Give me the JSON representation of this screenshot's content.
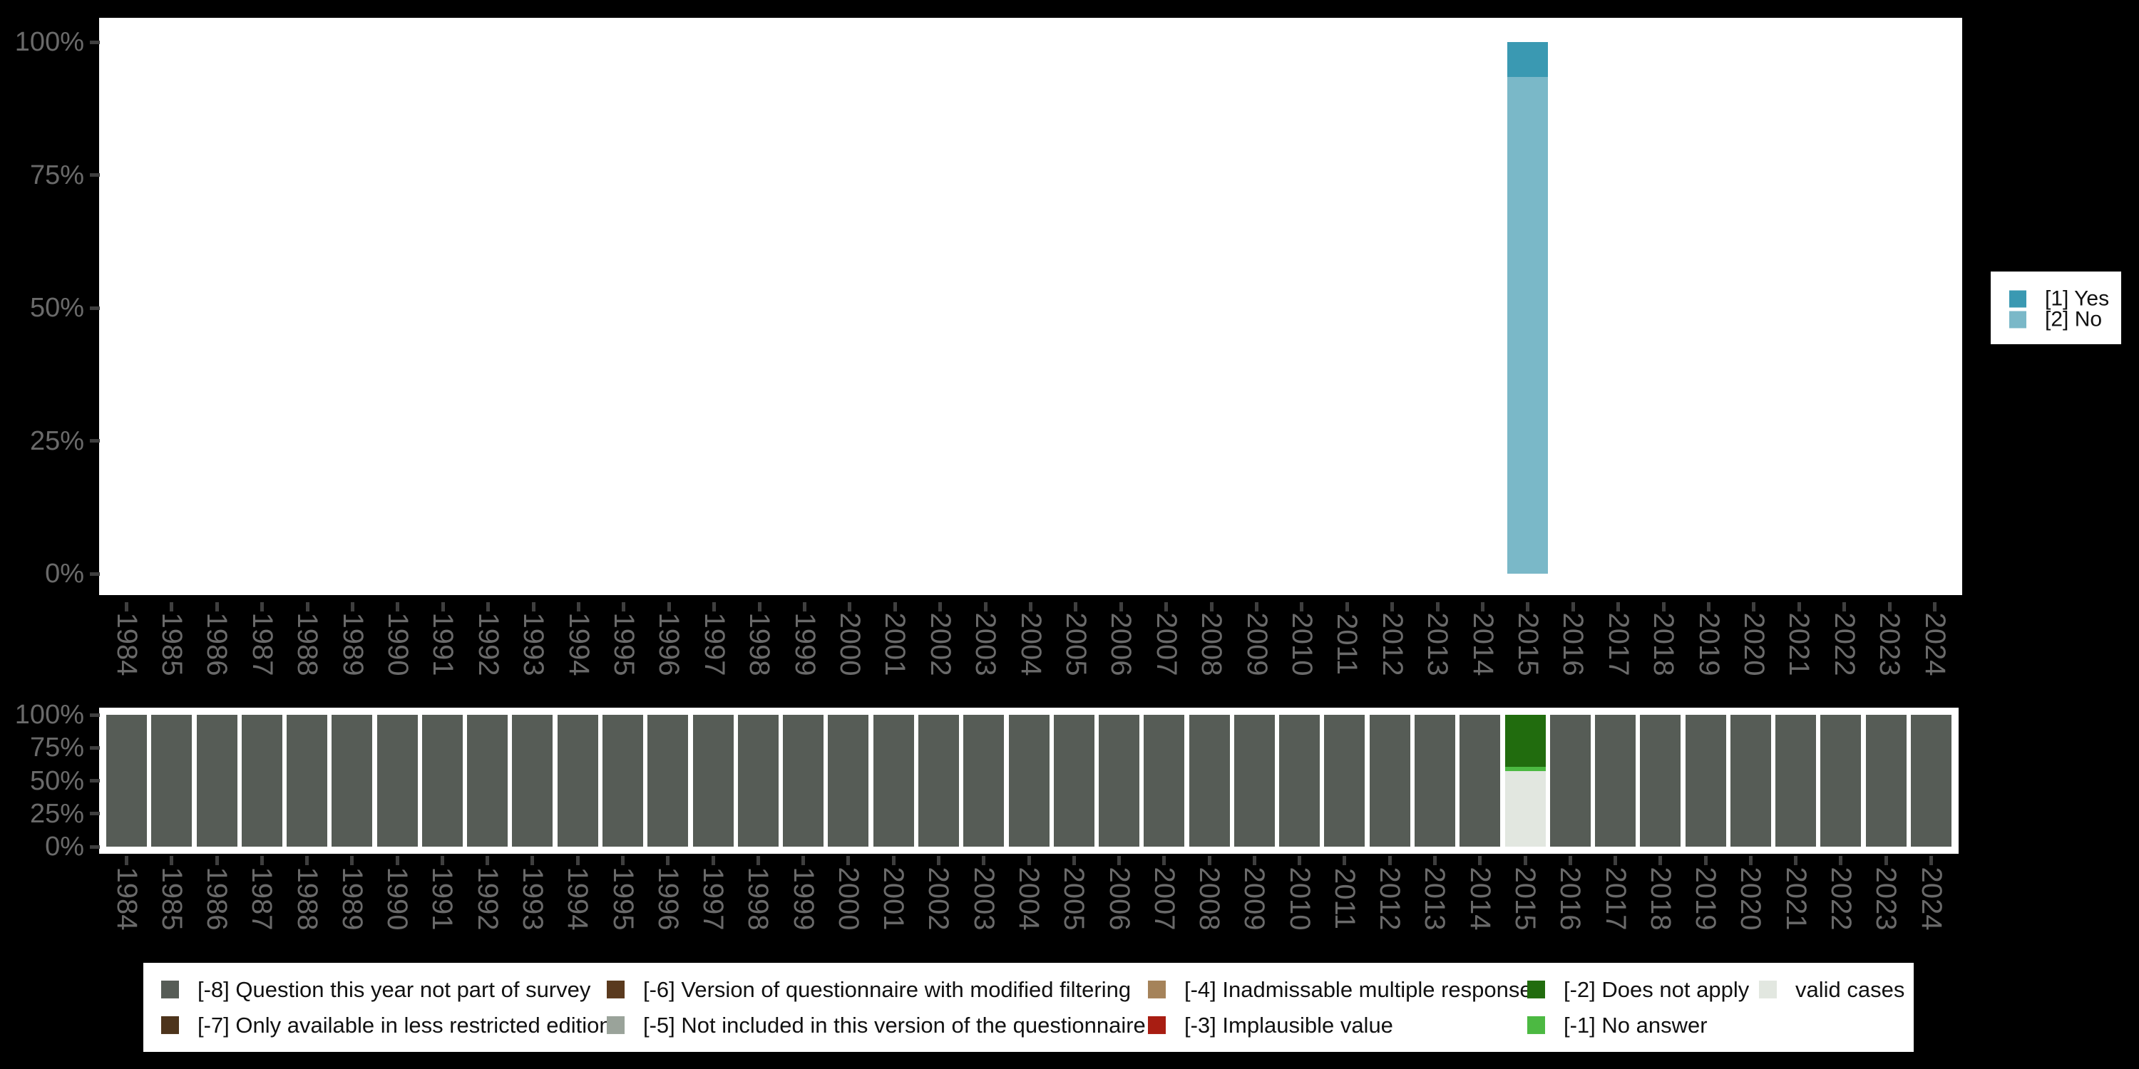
{
  "background": "#000000",
  "colors": {
    "plot_bg": "#ffffff",
    "axis_text": "#6a6a6a",
    "tick": "#3f3f3f",
    "legend_text": "#111111"
  },
  "chart_data": [
    {
      "type": "bar",
      "stacked": true,
      "orientation": "vertical",
      "unit": "percent",
      "title": "",
      "xlabel": "",
      "ylabel": "",
      "ylim": [
        0,
        100
      ],
      "grid": false,
      "legend_position": "right",
      "yticks": [
        "100%",
        "75%",
        "50%",
        "25%",
        "0%"
      ],
      "categories": [
        "1984",
        "1985",
        "1986",
        "1987",
        "1988",
        "1989",
        "1990",
        "1991",
        "1992",
        "1993",
        "1994",
        "1995",
        "1996",
        "1997",
        "1998",
        "1999",
        "2000",
        "2001",
        "2002",
        "2003",
        "2004",
        "2005",
        "2006",
        "2007",
        "2008",
        "2009",
        "2010",
        "2011",
        "2012",
        "2013",
        "2014",
        "2015",
        "2016",
        "2017",
        "2018",
        "2019",
        "2020",
        "2021",
        "2022",
        "2023",
        "2024"
      ],
      "series": [
        {
          "name": "[1] Yes",
          "color": "#3a99b2",
          "values": [
            null,
            null,
            null,
            null,
            null,
            null,
            null,
            null,
            null,
            null,
            null,
            null,
            null,
            null,
            null,
            null,
            null,
            null,
            null,
            null,
            null,
            null,
            null,
            null,
            null,
            null,
            null,
            null,
            null,
            null,
            null,
            6.6,
            null,
            null,
            null,
            null,
            null,
            null,
            null,
            null,
            null
          ]
        },
        {
          "name": "[2] No",
          "color": "#7ab8c8",
          "values": [
            null,
            null,
            null,
            null,
            null,
            null,
            null,
            null,
            null,
            null,
            null,
            null,
            null,
            null,
            null,
            null,
            null,
            null,
            null,
            null,
            null,
            null,
            null,
            null,
            null,
            null,
            null,
            null,
            null,
            null,
            null,
            93.4,
            null,
            null,
            null,
            null,
            null,
            null,
            null,
            null,
            null
          ]
        }
      ]
    },
    {
      "type": "bar",
      "stacked": true,
      "orientation": "vertical",
      "unit": "percent",
      "title": "",
      "xlabel": "",
      "ylabel": "",
      "ylim": [
        0,
        100
      ],
      "grid": false,
      "legend_position": "bottom",
      "yticks": [
        "100%",
        "75%",
        "50%",
        "25%",
        "0%"
      ],
      "categories": [
        "1984",
        "1985",
        "1986",
        "1987",
        "1988",
        "1989",
        "1990",
        "1991",
        "1992",
        "1993",
        "1994",
        "1995",
        "1996",
        "1997",
        "1998",
        "1999",
        "2000",
        "2001",
        "2002",
        "2003",
        "2004",
        "2005",
        "2006",
        "2007",
        "2008",
        "2009",
        "2010",
        "2011",
        "2012",
        "2013",
        "2014",
        "2015",
        "2016",
        "2017",
        "2018",
        "2019",
        "2020",
        "2021",
        "2022",
        "2023",
        "2024"
      ],
      "series": [
        {
          "name": "[-8] Question this year not part of survey",
          "color": "#565c56",
          "values": [
            100,
            100,
            100,
            100,
            100,
            100,
            100,
            100,
            100,
            100,
            100,
            100,
            100,
            100,
            100,
            100,
            100,
            100,
            100,
            100,
            100,
            100,
            100,
            100,
            100,
            100,
            100,
            100,
            100,
            100,
            100,
            null,
            100,
            100,
            100,
            100,
            100,
            100,
            100,
            100,
            100
          ]
        },
        {
          "name": "[-2] Does not apply",
          "color": "#216c0e",
          "values": [
            null,
            null,
            null,
            null,
            null,
            null,
            null,
            null,
            null,
            null,
            null,
            null,
            null,
            null,
            null,
            null,
            null,
            null,
            null,
            null,
            null,
            null,
            null,
            null,
            null,
            null,
            null,
            null,
            null,
            null,
            null,
            39.5,
            null,
            null,
            null,
            null,
            null,
            null,
            null,
            null,
            null
          ]
        },
        {
          "name": "[-1] No answer",
          "color": "#4cb942",
          "values": [
            null,
            null,
            null,
            null,
            null,
            null,
            null,
            null,
            null,
            null,
            null,
            null,
            null,
            null,
            null,
            null,
            null,
            null,
            null,
            null,
            null,
            null,
            null,
            null,
            null,
            null,
            null,
            null,
            null,
            null,
            null,
            3.2,
            null,
            null,
            null,
            null,
            null,
            null,
            null,
            null,
            null
          ]
        },
        {
          "name": "valid cases",
          "color": "#e2e7e0",
          "values": [
            null,
            null,
            null,
            null,
            null,
            null,
            null,
            null,
            null,
            null,
            null,
            null,
            null,
            null,
            null,
            null,
            null,
            null,
            null,
            null,
            null,
            null,
            null,
            null,
            null,
            null,
            null,
            null,
            null,
            null,
            null,
            57.3,
            null,
            null,
            null,
            null,
            null,
            null,
            null,
            null,
            null
          ]
        }
      ]
    }
  ],
  "legend_right": {
    "items": [
      {
        "label": "[1] Yes",
        "color": "#3a99b2"
      },
      {
        "label": "[2] No",
        "color": "#7ab8c8"
      }
    ]
  },
  "legend_bottom": {
    "rows": [
      [
        {
          "label": "[-8] Question this year not part of survey",
          "color": "#565c56"
        },
        {
          "label": "[-6] Version of questionnaire with modified filtering",
          "color": "#5a3a1e"
        },
        {
          "label": "[-4] Inadmissable multiple response",
          "color": "#a5835a"
        },
        {
          "label": "[-2] Does not apply",
          "color": "#216c0e"
        },
        {
          "label": "valid cases",
          "color": "#e2e7e0"
        }
      ],
      [
        {
          "label": "[-7] Only available in less restricted edition",
          "color": "#4d341c"
        },
        {
          "label": "[-5] Not included in this version of the questionnaire",
          "color": "#9aa39a"
        },
        {
          "label": "[-3] Implausible value",
          "color": "#a81d12"
        },
        {
          "label": "[-1] No answer",
          "color": "#4cb942"
        }
      ]
    ]
  }
}
